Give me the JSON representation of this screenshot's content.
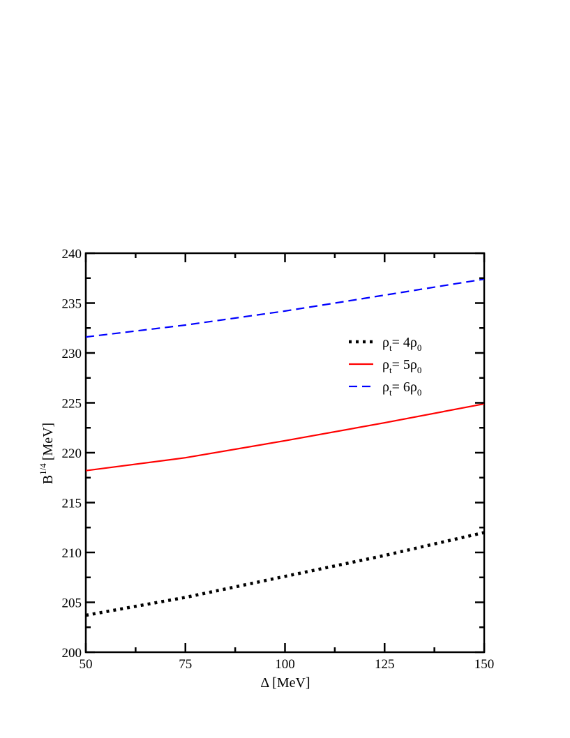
{
  "chart_data": {
    "type": "line",
    "xlabel": "Δ [MeV]",
    "ylabel": {
      "base": "B",
      "sup": "1/4",
      "unit": "[MeV]"
    },
    "xlim": [
      50,
      150
    ],
    "ylim": [
      200,
      240
    ],
    "xticks": [
      50,
      75,
      100,
      125,
      150
    ],
    "yticks": [
      200,
      205,
      210,
      215,
      220,
      225,
      230,
      235,
      240
    ],
    "grid": false,
    "legend_position": "upper-right-inside",
    "x": [
      50,
      75,
      100,
      125,
      150
    ],
    "series": [
      {
        "name": "ρt= 4ρ0",
        "label_parts": {
          "a": "ρ",
          "a_sub": "t",
          "b": "= 4ρ",
          "b_sub": "0"
        },
        "color": "#000000",
        "style": "dotted",
        "values": [
          203.7,
          205.5,
          207.6,
          209.7,
          212.0
        ]
      },
      {
        "name": "ρt= 5ρ0",
        "label_parts": {
          "a": "ρ",
          "a_sub": "t",
          "b": "= 5ρ",
          "b_sub": "0"
        },
        "color": "#ff0000",
        "style": "solid",
        "values": [
          218.2,
          219.5,
          221.2,
          223.0,
          224.9
        ]
      },
      {
        "name": "ρt= 6ρ0",
        "label_parts": {
          "a": "ρ",
          "a_sub": "t",
          "b": "= 6ρ",
          "b_sub": "0"
        },
        "color": "#0000ff",
        "style": "dashed",
        "values": [
          231.6,
          232.8,
          234.2,
          235.8,
          237.4
        ]
      }
    ]
  }
}
